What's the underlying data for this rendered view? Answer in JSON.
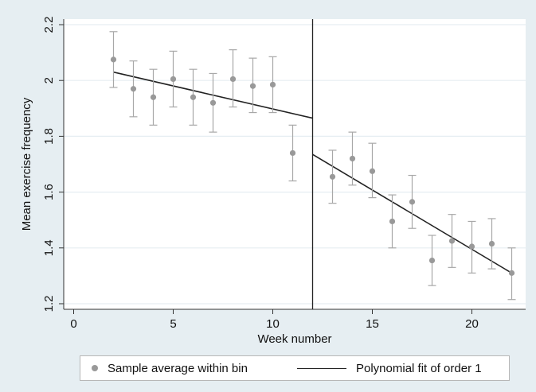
{
  "chart_data": {
    "type": "scatter",
    "title": "",
    "xlabel": "Week number",
    "ylabel": "Mean exercise frequency",
    "xlim": [
      -0.5,
      22.7
    ],
    "ylim": [
      1.18,
      2.22
    ],
    "xticks": [
      0,
      5,
      10,
      15,
      20
    ],
    "yticks": [
      1.2,
      1.4,
      1.6,
      1.8,
      2,
      2.2
    ],
    "ytick_labels": [
      "1.2",
      "1.4",
      "1.6",
      "1.8",
      "2",
      "2.2"
    ],
    "grid": "horizontal",
    "cutoff_x": 12,
    "series": [
      {
        "name": "Sample average within bin",
        "kind": "points_with_error_bars",
        "color": "#999999",
        "points": [
          {
            "x": 2,
            "y": 2.075,
            "lo": 1.975,
            "hi": 2.175
          },
          {
            "x": 3,
            "y": 1.97,
            "lo": 1.87,
            "hi": 2.07
          },
          {
            "x": 4,
            "y": 1.94,
            "lo": 1.84,
            "hi": 2.04
          },
          {
            "x": 5,
            "y": 2.005,
            "lo": 1.905,
            "hi": 2.105
          },
          {
            "x": 6,
            "y": 1.94,
            "lo": 1.84,
            "hi": 2.04
          },
          {
            "x": 7,
            "y": 1.92,
            "lo": 1.815,
            "hi": 2.025
          },
          {
            "x": 8,
            "y": 2.005,
            "lo": 1.905,
            "hi": 2.11
          },
          {
            "x": 9,
            "y": 1.98,
            "lo": 1.885,
            "hi": 2.08
          },
          {
            "x": 10,
            "y": 1.985,
            "lo": 1.885,
            "hi": 2.085
          },
          {
            "x": 11,
            "y": 1.74,
            "lo": 1.64,
            "hi": 1.84
          },
          {
            "x": 13,
            "y": 1.655,
            "lo": 1.56,
            "hi": 1.75
          },
          {
            "x": 14,
            "y": 1.72,
            "lo": 1.625,
            "hi": 1.815
          },
          {
            "x": 15,
            "y": 1.675,
            "lo": 1.58,
            "hi": 1.775
          },
          {
            "x": 16,
            "y": 1.495,
            "lo": 1.4,
            "hi": 1.59
          },
          {
            "x": 17,
            "y": 1.565,
            "lo": 1.47,
            "hi": 1.66
          },
          {
            "x": 18,
            "y": 1.355,
            "lo": 1.265,
            "hi": 1.445
          },
          {
            "x": 19,
            "y": 1.425,
            "lo": 1.33,
            "hi": 1.52
          },
          {
            "x": 20,
            "y": 1.405,
            "lo": 1.31,
            "hi": 1.495
          },
          {
            "x": 21,
            "y": 1.415,
            "lo": 1.325,
            "hi": 1.505
          },
          {
            "x": 22,
            "y": 1.31,
            "lo": 1.215,
            "hi": 1.4
          }
        ]
      },
      {
        "name": "Polynomial fit of order 1",
        "kind": "fit_lines",
        "color": "#222222",
        "segments": [
          {
            "x": [
              2,
              12
            ],
            "y": [
              2.03,
              1.865
            ]
          },
          {
            "x": [
              12,
              22
            ],
            "y": [
              1.735,
              1.31
            ]
          }
        ]
      }
    ],
    "legend": {
      "placement": "bottom",
      "items": [
        "Sample average within bin",
        "Polynomial fit of order 1"
      ]
    }
  }
}
